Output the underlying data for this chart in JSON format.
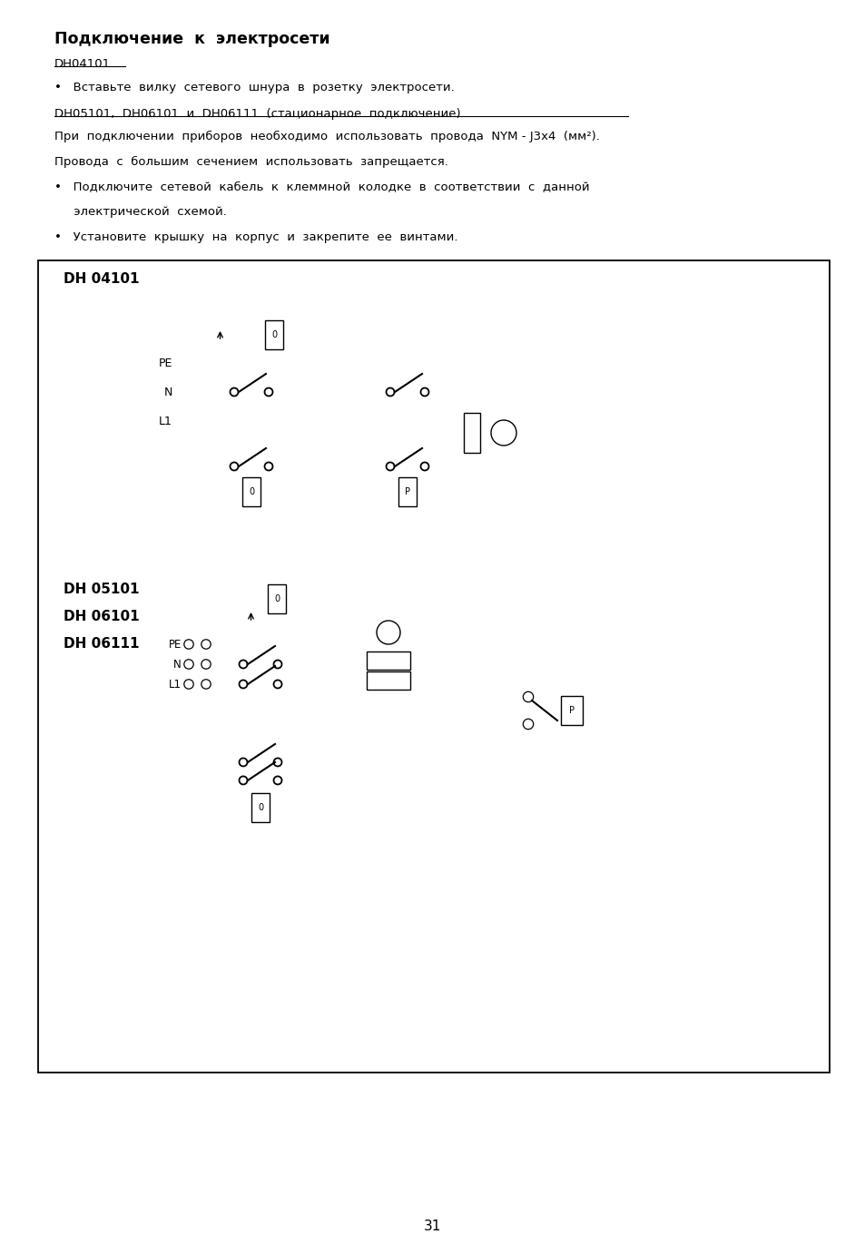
{
  "bg_color": "#ffffff",
  "page_number": "31",
  "title": "Подключение  к  электросети",
  "dh04101_label": "DH04101",
  "dh05101_group_label": "DH05101,  DH06101  и  DH06111  (стационарное  подключение)",
  "bullet1": "•   Вставьте  вилку  сетевого  шнура  в  розетку  электросети.",
  "para1": "При  подключении  приборов  необходимо  использовать  провода  NYM - J3x4  (мм²).",
  "para2": "Провода  с  большим  сечением  использовать  запрещается.",
  "bullet2a": "•   Подключите  сетевой  кабель  к  клеммной  колодке  в  соответствии  с  данной",
  "bullet2b": "     электрической  схемой.",
  "bullet3": "•   Установите  крышку  на  корпус  и  закрепите  ее  винтами.",
  "diag1_label": "DH 04101",
  "diag2_labels": [
    "DH 05101",
    "DH 06101",
    "DH 06111"
  ]
}
